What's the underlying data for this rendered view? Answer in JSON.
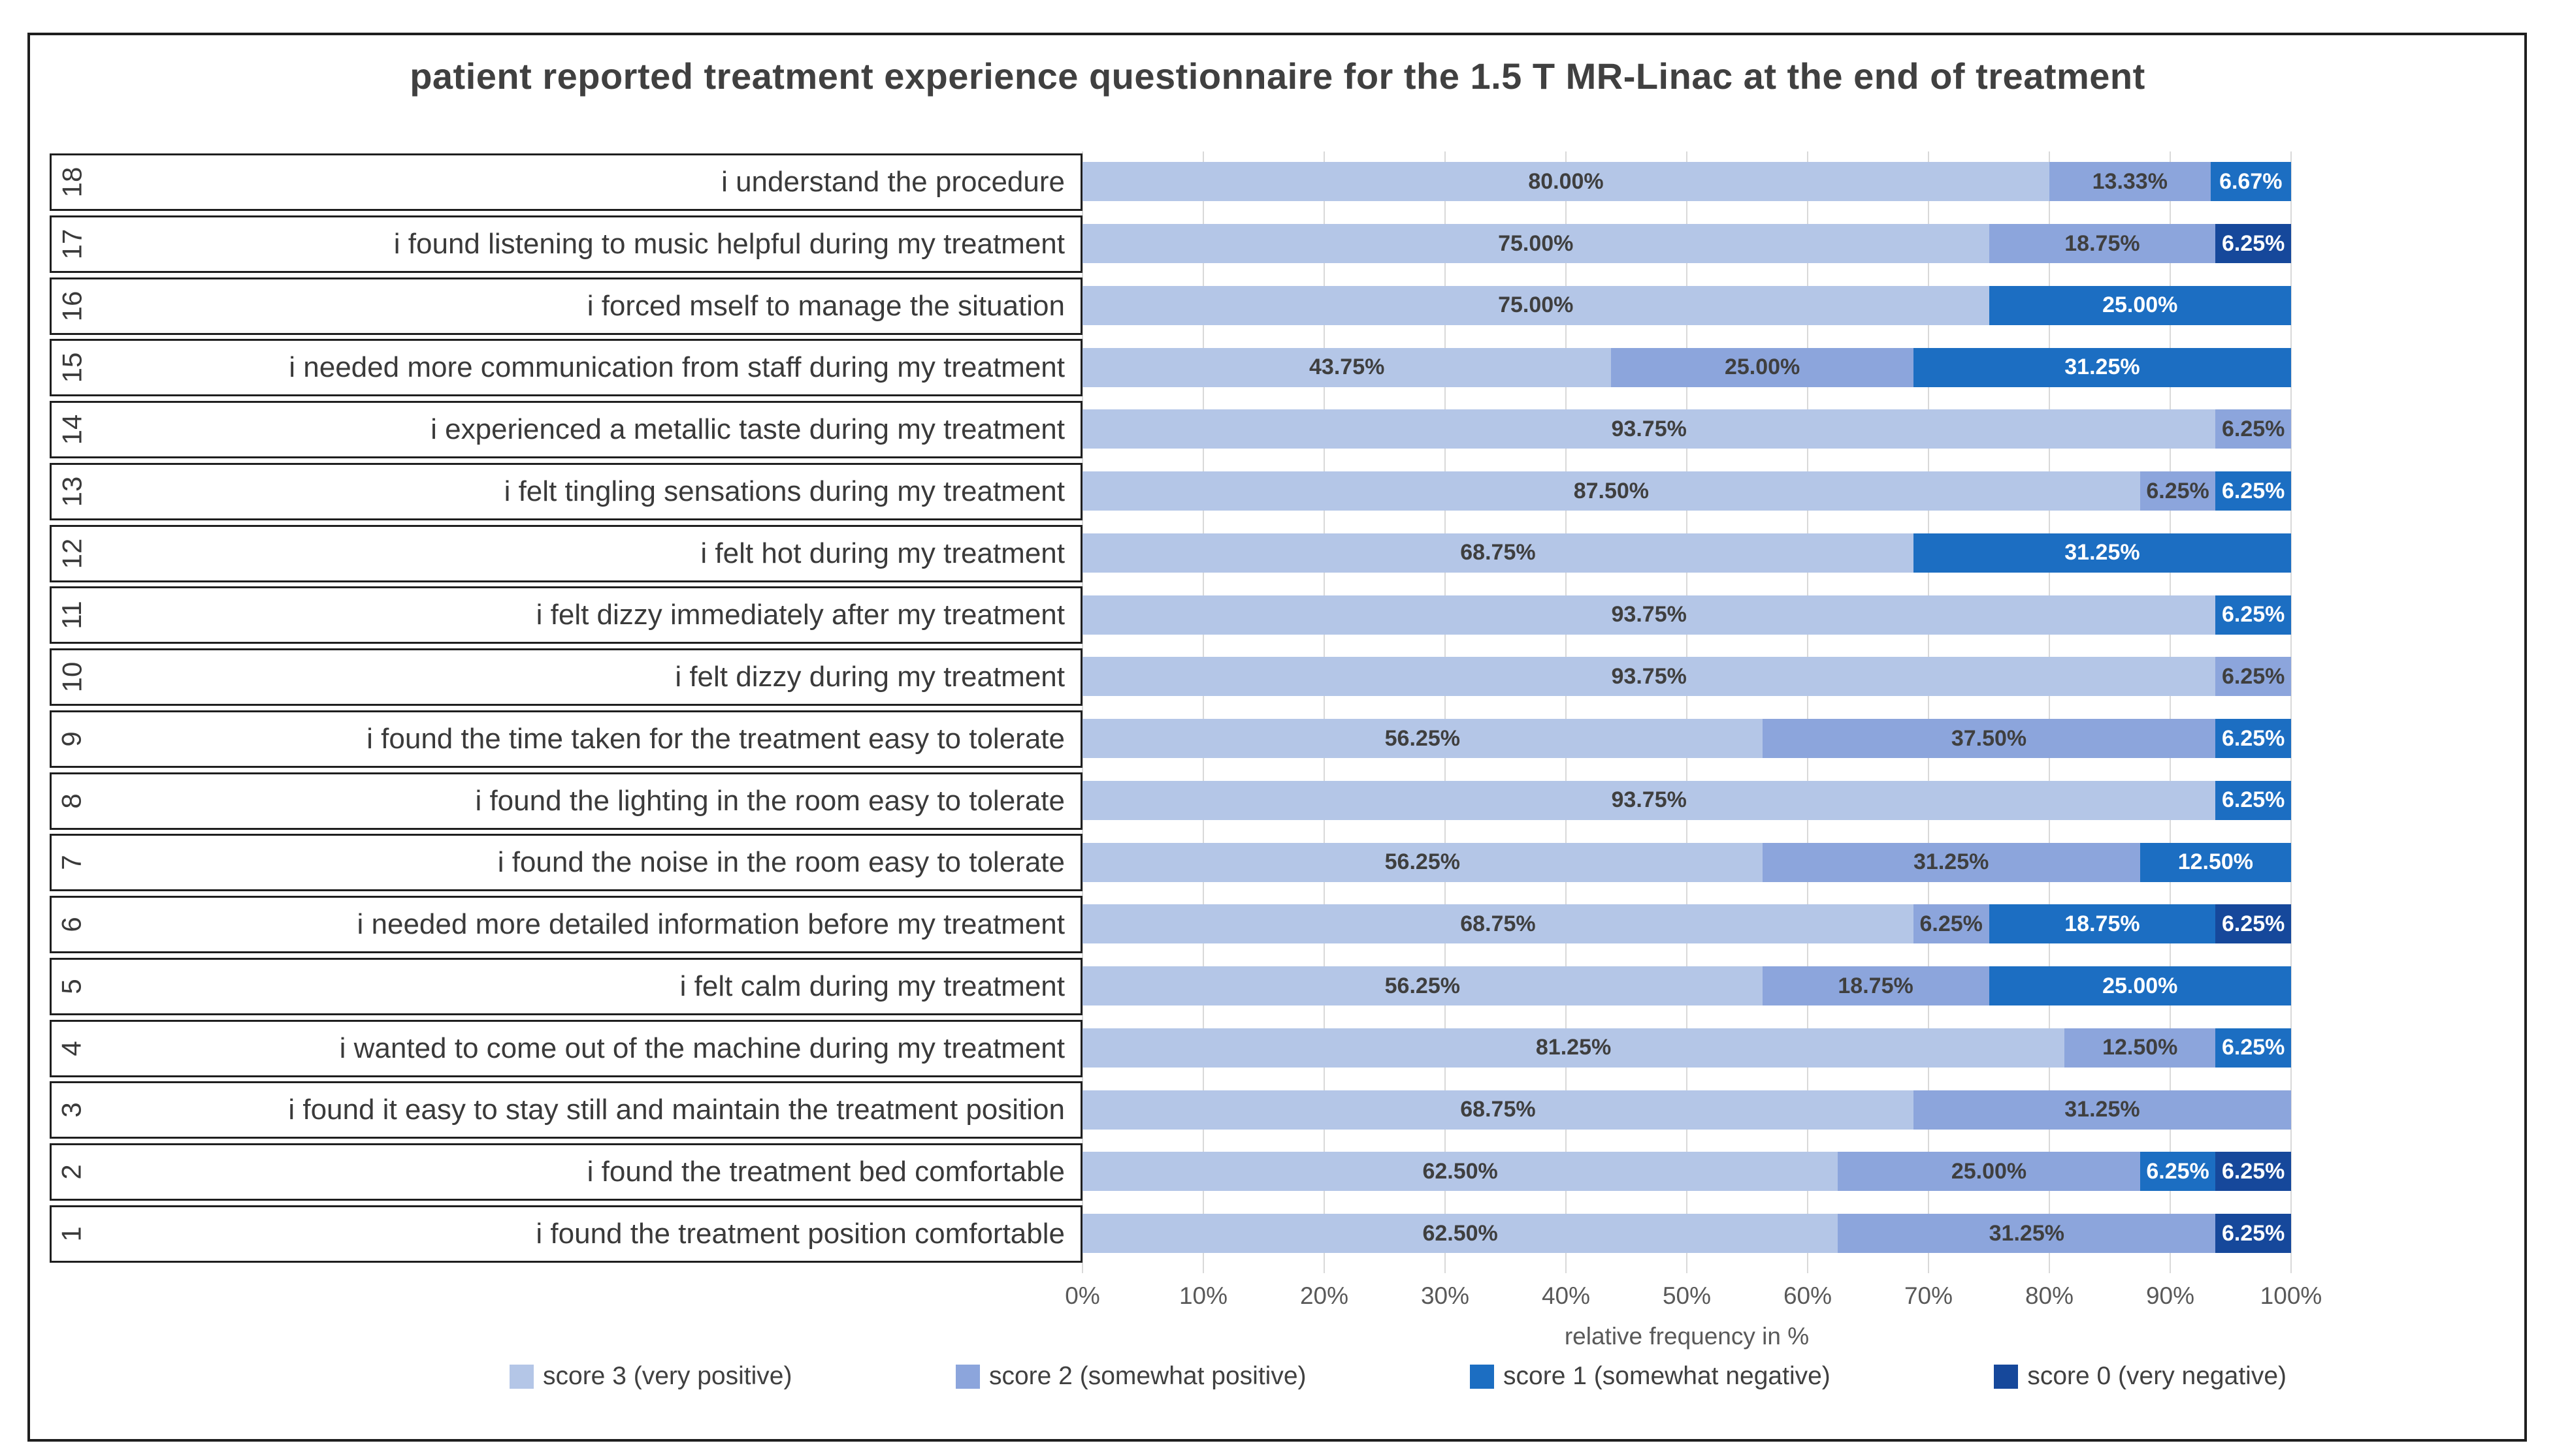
{
  "title": "patient reported treatment experience questionnaire for the 1.5 T MR-Linac at the end of treatment",
  "colors": {
    "score3": "#B4C6E7",
    "score2": "#8CA5DC",
    "score1": "#1C6EC2",
    "score0": "#16489B",
    "grid": "#D9D9D9"
  },
  "legend": [
    {
      "key": "score3",
      "label": "score 3 (very positive)"
    },
    {
      "key": "score2",
      "label": "score 2 (somewhat positive)"
    },
    {
      "key": "score1",
      "label": "score 1 (somewhat negative)"
    },
    {
      "key": "score0",
      "label": "score 0 (very negative)"
    }
  ],
  "axis": {
    "ticks": [
      "0%",
      "10%",
      "20%",
      "30%",
      "40%",
      "50%",
      "60%",
      "70%",
      "80%",
      "90%",
      "100%"
    ],
    "label": "relative frequency in %",
    "min": 0,
    "max": 100
  },
  "rows": [
    {
      "num": "18",
      "question": "i understand the procedure",
      "segments": [
        {
          "score": "score3",
          "value": 80.0,
          "label": "80.00%"
        },
        {
          "score": "score2",
          "value": 13.33,
          "label": "13.33%"
        },
        {
          "score": "score1",
          "value": 6.67,
          "label": "6.67%"
        }
      ]
    },
    {
      "num": "17",
      "question": "i found listening to music helpful during my treatment",
      "segments": [
        {
          "score": "score3",
          "value": 75.0,
          "label": "75.00%"
        },
        {
          "score": "score2",
          "value": 18.75,
          "label": "18.75%"
        },
        {
          "score": "score0",
          "value": 6.25,
          "label": "6.25%"
        }
      ]
    },
    {
      "num": "16",
      "question": "i forced mself to manage the situation",
      "segments": [
        {
          "score": "score3",
          "value": 75.0,
          "label": "75.00%"
        },
        {
          "score": "score1",
          "value": 25.0,
          "label": "25.00%"
        }
      ]
    },
    {
      "num": "15",
      "question": "i needed more communication from staff during my treatment",
      "segments": [
        {
          "score": "score3",
          "value": 43.75,
          "label": "43.75%"
        },
        {
          "score": "score2",
          "value": 25.0,
          "label": "25.00%"
        },
        {
          "score": "score1",
          "value": 31.25,
          "label": "31.25%"
        }
      ]
    },
    {
      "num": "14",
      "question": "i experienced a metallic taste during my treatment",
      "segments": [
        {
          "score": "score3",
          "value": 93.75,
          "label": "93.75%"
        },
        {
          "score": "score2",
          "value": 6.25,
          "label": "6.25%"
        }
      ]
    },
    {
      "num": "13",
      "question": "i felt tingling sensations during my treatment",
      "segments": [
        {
          "score": "score3",
          "value": 87.5,
          "label": "87.50%"
        },
        {
          "score": "score2",
          "value": 6.25,
          "label": "6.25%"
        },
        {
          "score": "score1",
          "value": 6.25,
          "label": "6.25%"
        }
      ]
    },
    {
      "num": "12",
      "question": "i felt hot during my treatment",
      "segments": [
        {
          "score": "score3",
          "value": 68.75,
          "label": "68.75%"
        },
        {
          "score": "score1",
          "value": 31.25,
          "label": "31.25%"
        }
      ]
    },
    {
      "num": "11",
      "question": "i felt dizzy immediately after my treatment",
      "segments": [
        {
          "score": "score3",
          "value": 93.75,
          "label": "93.75%"
        },
        {
          "score": "score1",
          "value": 6.25,
          "label": "6.25%"
        }
      ]
    },
    {
      "num": "10",
      "question": "i felt dizzy during my treatment",
      "segments": [
        {
          "score": "score3",
          "value": 93.75,
          "label": "93.75%"
        },
        {
          "score": "score2",
          "value": 6.25,
          "label": "6.25%"
        }
      ]
    },
    {
      "num": "9",
      "question": "i found the time taken for the treatment easy to tolerate",
      "segments": [
        {
          "score": "score3",
          "value": 56.25,
          "label": "56.25%"
        },
        {
          "score": "score2",
          "value": 37.5,
          "label": "37.50%"
        },
        {
          "score": "score1",
          "value": 6.25,
          "label": "6.25%"
        }
      ]
    },
    {
      "num": "8",
      "question": "i found the lighting in the room easy to tolerate",
      "segments": [
        {
          "score": "score3",
          "value": 93.75,
          "label": "93.75%"
        },
        {
          "score": "score1",
          "value": 6.25,
          "label": "6.25%"
        }
      ]
    },
    {
      "num": "7",
      "question": "i found the noise in the room easy to tolerate",
      "segments": [
        {
          "score": "score3",
          "value": 56.25,
          "label": "56.25%"
        },
        {
          "score": "score2",
          "value": 31.25,
          "label": "31.25%"
        },
        {
          "score": "score1",
          "value": 12.5,
          "label": "12.50%"
        }
      ]
    },
    {
      "num": "6",
      "question": "i needed more detailed information before my treatment",
      "segments": [
        {
          "score": "score3",
          "value": 68.75,
          "label": "68.75%"
        },
        {
          "score": "score2",
          "value": 6.25,
          "label": "6.25%"
        },
        {
          "score": "score1",
          "value": 18.75,
          "label": "18.75%"
        },
        {
          "score": "score0",
          "value": 6.25,
          "label": "6.25%"
        }
      ]
    },
    {
      "num": "5",
      "question": "i felt calm during my treatment",
      "segments": [
        {
          "score": "score3",
          "value": 56.25,
          "label": "56.25%"
        },
        {
          "score": "score2",
          "value": 18.75,
          "label": "18.75%"
        },
        {
          "score": "score1",
          "value": 25.0,
          "label": "25.00%"
        }
      ]
    },
    {
      "num": "4",
      "question": "i wanted to come out of the machine during my treatment",
      "segments": [
        {
          "score": "score3",
          "value": 81.25,
          "label": "81.25%"
        },
        {
          "score": "score2",
          "value": 12.5,
          "label": "12.50%"
        },
        {
          "score": "score1",
          "value": 6.25,
          "label": "6.25%"
        }
      ]
    },
    {
      "num": "3",
      "question": "i found it easy to stay still and maintain the treatment position",
      "segments": [
        {
          "score": "score3",
          "value": 68.75,
          "label": "68.75%"
        },
        {
          "score": "score2",
          "value": 31.25,
          "label": "31.25%"
        }
      ]
    },
    {
      "num": "2",
      "question": "i found the treatment bed comfortable",
      "segments": [
        {
          "score": "score3",
          "value": 62.5,
          "label": "62.50%"
        },
        {
          "score": "score2",
          "value": 25.0,
          "label": "25.00%"
        },
        {
          "score": "score1",
          "value": 6.25,
          "label": "6.25%"
        },
        {
          "score": "score0",
          "value": 6.25,
          "label": "6.25%"
        }
      ]
    },
    {
      "num": "1",
      "question": "i found the treatment position comfortable",
      "segments": [
        {
          "score": "score3",
          "value": 62.5,
          "label": "62.50%"
        },
        {
          "score": "score2",
          "value": 31.25,
          "label": "31.25%"
        },
        {
          "score": "score0",
          "value": 6.25,
          "label": "6.25%"
        }
      ]
    }
  ],
  "chart_data": {
    "type": "bar",
    "orientation": "horizontal",
    "stacked": true,
    "title": "patient reported treatment experience questionnaire for the 1.5 T MR-Linac at the end of treatment",
    "xlabel": "relative frequency in %",
    "ylabel": "",
    "xlim": [
      0,
      100
    ],
    "x_ticks": [
      "0%",
      "10%",
      "20%",
      "30%",
      "40%",
      "50%",
      "60%",
      "70%",
      "80%",
      "90%",
      "100%"
    ],
    "grid": true,
    "legend_position": "bottom",
    "categories": [
      "18 i understand the procedure",
      "17 i found listening to music helpful during my treatment",
      "16 i forced mself to manage the situation",
      "15 i needed more communication from staff during my treatment",
      "14 i experienced a metallic taste during my treatment",
      "13 i felt tingling sensations during my treatment",
      "12 i felt hot during my treatment",
      "11 i felt dizzy immediately after my treatment",
      "10 i felt dizzy during my treatment",
      "9 i found the time taken for the treatment easy to tolerate",
      "8 i found the lighting in the room easy to tolerate",
      "7 i found the noise in the room easy to tolerate",
      "6 i needed more detailed information before my treatment",
      "5 i felt calm during my treatment",
      "4 i wanted to come out of the machine during my treatment",
      "3 i found it easy to stay still and maintain the treatment position",
      "2 i found the treatment bed comfortable",
      "1 i found the treatment position comfortable"
    ],
    "series": [
      {
        "name": "score 3 (very positive)",
        "values": [
          80.0,
          75.0,
          75.0,
          43.75,
          93.75,
          87.5,
          68.75,
          93.75,
          93.75,
          56.25,
          93.75,
          56.25,
          68.75,
          56.25,
          81.25,
          68.75,
          62.5,
          62.5
        ]
      },
      {
        "name": "score 2 (somewhat positive)",
        "values": [
          13.33,
          18.75,
          0,
          25.0,
          6.25,
          6.25,
          0,
          0,
          6.25,
          37.5,
          0,
          31.25,
          6.25,
          18.75,
          12.5,
          31.25,
          25.0,
          31.25
        ]
      },
      {
        "name": "score 1 (somewhat negative)",
        "values": [
          6.67,
          0,
          25.0,
          31.25,
          0,
          6.25,
          31.25,
          6.25,
          0,
          6.25,
          6.25,
          12.5,
          18.75,
          25.0,
          6.25,
          0,
          6.25,
          0
        ]
      },
      {
        "name": "score 0 (very negative)",
        "values": [
          0,
          6.25,
          0,
          0,
          0,
          0,
          0,
          0,
          0,
          0,
          0,
          0,
          6.25,
          0,
          0,
          0,
          6.25,
          6.25
        ]
      }
    ]
  }
}
